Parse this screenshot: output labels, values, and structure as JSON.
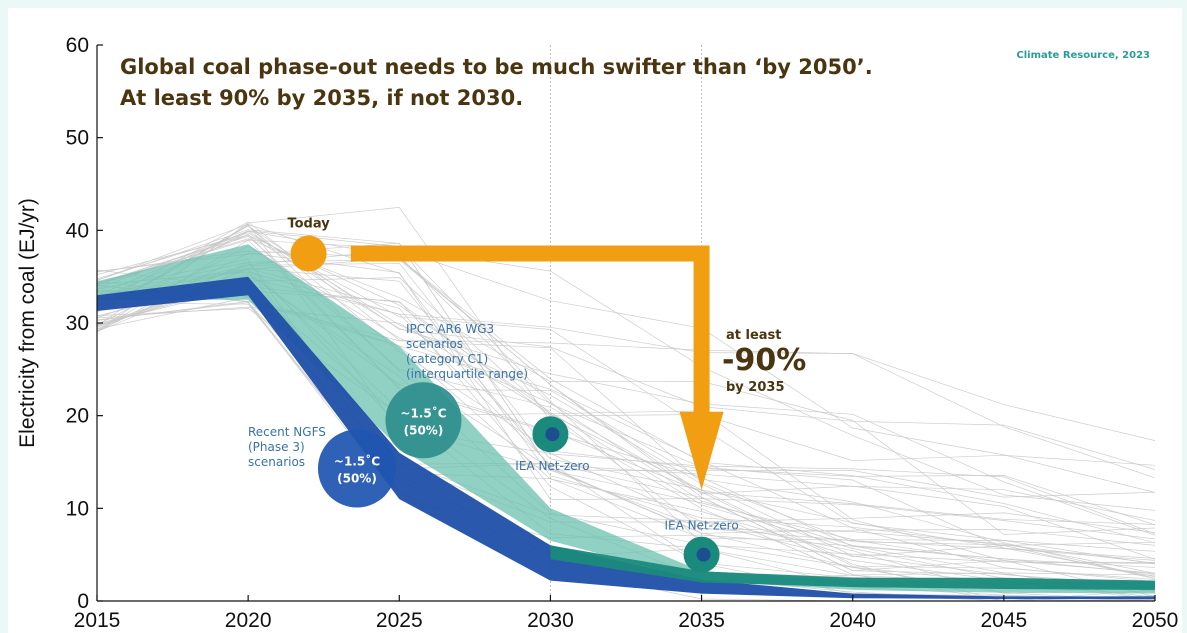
{
  "chart_data": {
    "type": "line",
    "title": "Global coal phase-out needs to be much swifter than ‘by 2050’.",
    "subtitle": "At least 90% by 2035, if not 2030.",
    "source": "Climate Resource, 2023",
    "xlabel": "",
    "ylabel": "Electricity from coal (EJ/yr)",
    "xlim": [
      2015,
      2050
    ],
    "ylim": [
      0,
      60
    ],
    "x_ticks": [
      "2015",
      "2020",
      "2025",
      "2030",
      "2035",
      "2040",
      "2045",
      "2050"
    ],
    "y_ticks": [
      "0",
      "10",
      "20",
      "30",
      "40",
      "50",
      "60"
    ],
    "grid": "vertical dotted lines at 2030 and 2035",
    "colors": {
      "ngfs": "#1f4fa8",
      "ipcc": "#6cc2b0",
      "iea": "#1a8a7c",
      "today": "#f29e12",
      "scenario_lines": "#c8c8c8",
      "title": "#4b3511",
      "source": "#2a9d9a"
    },
    "series": [
      {
        "name": "IPCC AR6 WG3 scenarios (category C1) (interquartile range)",
        "kind": "band",
        "x": [
          2015,
          2020,
          2025,
          2030,
          2035,
          2040,
          2045,
          2050
        ],
        "lower": [
          32.5,
          32.5,
          16.5,
          6.5,
          2.2,
          1.2,
          0.9,
          0.8
        ],
        "upper": [
          34.5,
          38.5,
          27.5,
          10.0,
          3.2,
          2.2,
          2.1,
          2.1
        ]
      },
      {
        "name": "Recent NGFS (Phase 3) scenarios",
        "kind": "band",
        "x": [
          2015,
          2020,
          2025,
          2030,
          2035,
          2040,
          2045,
          2050
        ],
        "lower": [
          31.3,
          33.0,
          11.0,
          2.2,
          0.8,
          0.3,
          0.2,
          0.2
        ],
        "upper": [
          33.0,
          35.0,
          16.0,
          6.0,
          2.3,
          0.8,
          0.5,
          0.5
        ]
      },
      {
        "name": "IEA Net-zero",
        "kind": "band",
        "x": [
          2030,
          2035,
          2040,
          2045,
          2050
        ],
        "lower": [
          4.5,
          2.0,
          1.5,
          1.3,
          1.2
        ],
        "upper": [
          6.0,
          3.2,
          2.5,
          2.5,
          2.2
        ]
      }
    ],
    "points": [
      {
        "name": "Today",
        "x": 2022,
        "y": 37.5
      },
      {
        "name": "IEA Net-zero",
        "x": 2030,
        "y": 18
      },
      {
        "name": "IEA Net-zero",
        "x": 2035,
        "y": 5
      }
    ],
    "bubbles": [
      {
        "label_line1": "~1.5˚C",
        "label_line2": "(50%)",
        "x": 2025.8,
        "y": 19.5
      },
      {
        "label_line1": "~1.5˚C",
        "label_line2": "(50%)",
        "x": 2023.6,
        "y": 14.3
      }
    ],
    "arrow": {
      "from_x": 2023,
      "to_x": 2035,
      "from_y": 37.5,
      "to_y": 12
    },
    "annotations": {
      "ipcc_label": [
        "IPCC AR6 WG3",
        "scenarios",
        "(category C1)",
        "(interquartile range)"
      ],
      "ngfs_label": [
        "Recent NGFS",
        "(Phase 3)",
        "scenarios"
      ],
      "today": "Today",
      "iea_label_2030": "IEA Net-zero",
      "iea_label_2035": "IEA Net-zero",
      "reduction_pre": "at least",
      "reduction_value": "-90%",
      "reduction_post": "by 2035"
    }
  }
}
